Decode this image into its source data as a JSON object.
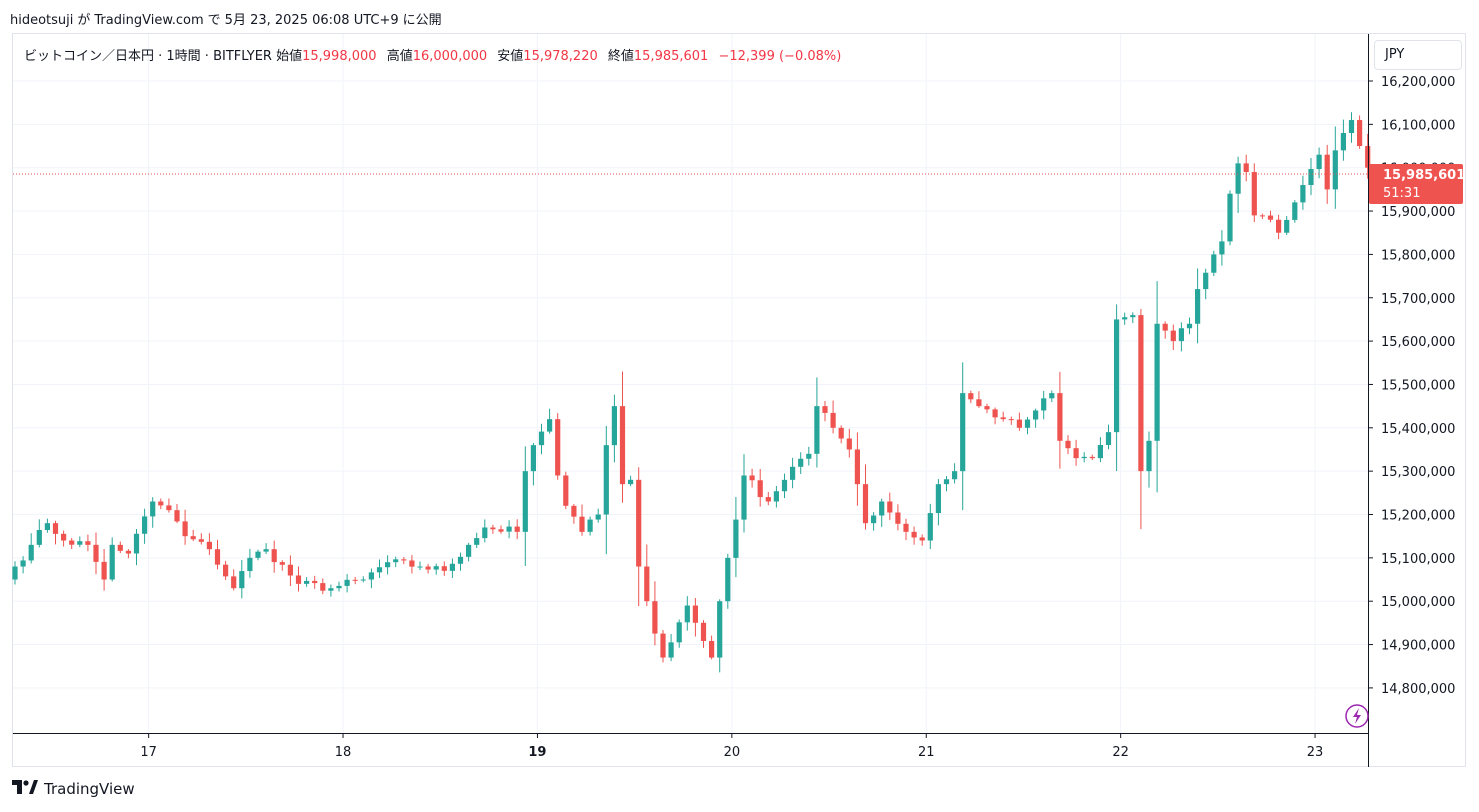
{
  "header": {
    "author": "hideotsuji",
    "ga": "が",
    "site": "TradingView.com",
    "de": "で",
    "date": "5月 23, 2025 06:08 UTC+9",
    "suffix": "に公開"
  },
  "legend": {
    "symbol": "ビットコイン／日本円 · 1時間 · BITFLYER",
    "open_label": "始値",
    "open": "15,998,000",
    "high_label": "高値",
    "high": "16,000,000",
    "low_label": "安値",
    "low": "15,978,220",
    "close_label": "終値",
    "close": "15,985,601",
    "change": "−12,399 (−0.08%)"
  },
  "currency_button": "JPY",
  "last_price_badge": {
    "price": "15,985,601",
    "countdown": "51:31"
  },
  "brand": "TradingView",
  "colors": {
    "up": "#26a69a",
    "down": "#ef5350",
    "grid": "#f0f3fa",
    "axis_text": "#131722"
  },
  "chart_data": {
    "type": "candlestick",
    "y_ticks": [
      "16,200,000",
      "16,100,000",
      "16,000,000",
      "15,900,000",
      "15,800,000",
      "15,700,000",
      "15,600,000",
      "15,500,000",
      "15,400,000",
      "15,300,000",
      "15,200,000",
      "15,100,000",
      "15,000,000",
      "14,900,000",
      "14,800,000"
    ],
    "y_tick_values": [
      16200000,
      16100000,
      16000000,
      15900000,
      15800000,
      15700000,
      15600000,
      15500000,
      15400000,
      15300000,
      15200000,
      15100000,
      15000000,
      14900000,
      14800000
    ],
    "x_ticks": [
      {
        "label": "17",
        "index": 16.5
      },
      {
        "label": "18",
        "index": 40.5
      },
      {
        "label": "19",
        "index": 64.5,
        "bold": true
      },
      {
        "label": "20",
        "index": 88.5
      },
      {
        "label": "21",
        "index": 112.5
      },
      {
        "label": "22",
        "index": 136.5
      },
      {
        "label": "23",
        "index": 160.5
      }
    ],
    "last_price": 15985601,
    "anchors": [
      [
        0,
        15080000
      ],
      [
        2,
        15130000
      ],
      [
        4,
        15180000
      ],
      [
        6,
        15140000
      ],
      [
        9,
        15130000
      ],
      [
        11,
        15050000
      ],
      [
        12,
        15130000
      ],
      [
        14,
        15110000
      ],
      [
        17,
        15230000
      ],
      [
        19,
        15210000
      ],
      [
        21,
        15150000
      ],
      [
        24,
        15120000
      ],
      [
        27,
        15030000
      ],
      [
        29,
        15100000
      ],
      [
        31,
        15120000
      ],
      [
        35,
        15040000
      ],
      [
        39,
        15030000
      ],
      [
        43,
        15050000
      ],
      [
        46,
        15090000
      ],
      [
        50,
        15080000
      ],
      [
        53,
        15070000
      ],
      [
        56,
        15130000
      ],
      [
        58,
        15170000
      ],
      [
        62,
        15160000
      ],
      [
        63,
        15300000
      ],
      [
        64,
        15360000
      ],
      [
        66,
        15420000
      ],
      [
        67,
        15290000
      ],
      [
        68,
        15220000
      ],
      [
        70,
        15160000
      ],
      [
        72,
        15200000
      ],
      [
        73,
        15360000
      ],
      [
        74,
        15450000
      ],
      [
        75,
        15270000
      ],
      [
        76,
        15280000
      ],
      [
        77,
        15080000
      ],
      [
        78,
        15000000
      ],
      [
        80,
        14870000
      ],
      [
        83,
        14990000
      ],
      [
        86,
        14870000
      ],
      [
        87,
        15000000
      ],
      [
        88,
        15100000
      ],
      [
        90,
        15290000
      ],
      [
        93,
        15230000
      ],
      [
        96,
        15310000
      ],
      [
        98,
        15340000
      ],
      [
        99,
        15450000
      ],
      [
        101,
        15400000
      ],
      [
        103,
        15350000
      ],
      [
        104,
        15270000
      ],
      [
        105,
        15180000
      ],
      [
        107,
        15230000
      ],
      [
        110,
        15160000
      ],
      [
        112,
        15140000
      ],
      [
        114,
        15270000
      ],
      [
        116,
        15300000
      ],
      [
        117,
        15480000
      ],
      [
        119,
        15450000
      ],
      [
        122,
        15420000
      ],
      [
        124,
        15400000
      ],
      [
        126,
        15440000
      ],
      [
        128,
        15480000
      ],
      [
        129,
        15370000
      ],
      [
        131,
        15330000
      ],
      [
        133,
        15330000
      ],
      [
        135,
        15390000
      ],
      [
        136,
        15650000
      ],
      [
        138,
        15660000
      ],
      [
        139,
        15300000
      ],
      [
        140,
        15370000
      ],
      [
        141,
        15640000
      ],
      [
        143,
        15600000
      ],
      [
        145,
        15640000
      ],
      [
        146,
        15720000
      ],
      [
        148,
        15800000
      ],
      [
        149,
        15830000
      ],
      [
        150,
        15940000
      ],
      [
        151,
        16010000
      ],
      [
        152,
        15990000
      ],
      [
        153,
        15890000
      ],
      [
        155,
        15880000
      ],
      [
        156,
        15850000
      ],
      [
        158,
        15920000
      ],
      [
        159,
        15960000
      ],
      [
        161,
        16030000
      ],
      [
        162,
        15950000
      ],
      [
        163,
        16040000
      ],
      [
        164,
        16080000
      ],
      [
        165,
        16110000
      ],
      [
        166,
        16050000
      ],
      [
        167,
        16000000
      ],
      [
        168,
        15998000
      ]
    ],
    "candle_count": 169
  }
}
